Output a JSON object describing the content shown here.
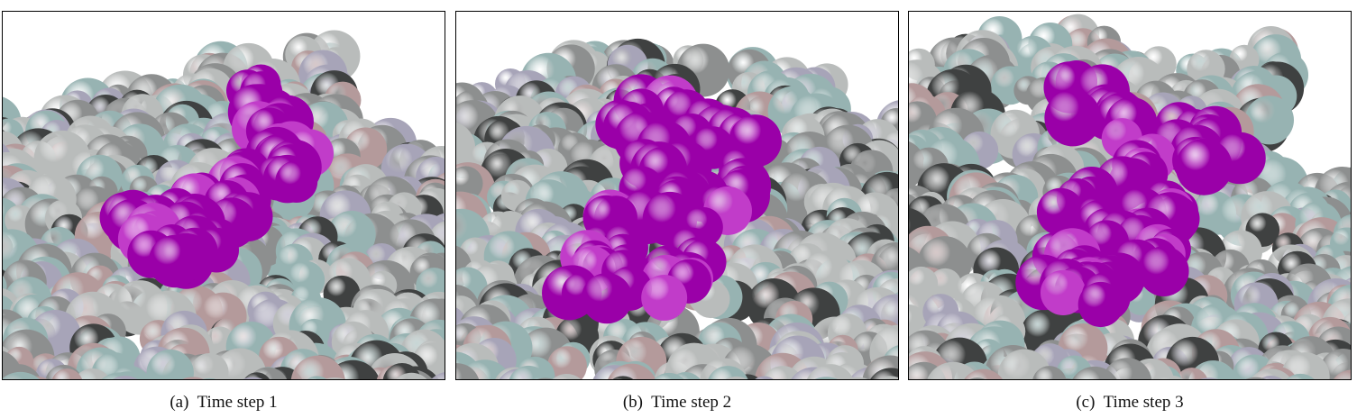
{
  "figure": {
    "panels": [
      {
        "id": "a",
        "label": "(a)",
        "caption": "Time step 1"
      },
      {
        "id": "b",
        "label": "(b)",
        "caption": "Time step 2"
      },
      {
        "id": "c",
        "label": "(c)",
        "caption": "Time step 3"
      }
    ],
    "colors": {
      "highlight": "#9a00a8",
      "highlight_light": "#c13cc9",
      "gray": "#8d8f8f",
      "gray_light": "#b9bcbb",
      "teal": "#97b3b2",
      "rose": "#b49a9b",
      "lavender": "#a7a4b8",
      "dark": "#3f4141",
      "background": "#ffffff"
    }
  }
}
